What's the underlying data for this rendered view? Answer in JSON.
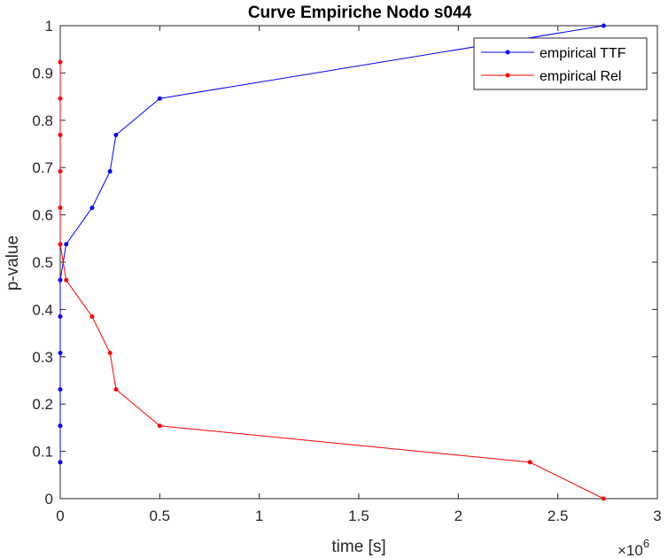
{
  "chart_data": {
    "type": "line",
    "title": "Curve Empiriche Nodo s044",
    "xlabel": "time [s]",
    "ylabel": "p-value",
    "xlim": [
      0,
      3
    ],
    "ylim": [
      0,
      1
    ],
    "x_multiplier": "×10",
    "x_multiplier_exp": "6",
    "xticks": [
      "0",
      "0.5",
      "1",
      "1.5",
      "2",
      "2.5",
      "3"
    ],
    "yticks": [
      "0",
      "0.1",
      "0.2",
      "0.3",
      "0.4",
      "0.5",
      "0.6",
      "0.7",
      "0.8",
      "0.9",
      "1"
    ],
    "grid": false,
    "legend_position": "top-right",
    "series": [
      {
        "name": "empirical TTF",
        "color": "#0000ff",
        "x": [
          0,
          0,
          0,
          0,
          0,
          0,
          0.03,
          0.16,
          0.25,
          0.28,
          0.5,
          2.73
        ],
        "y": [
          0.077,
          0.154,
          0.231,
          0.308,
          0.385,
          0.462,
          0.538,
          0.615,
          0.692,
          0.769,
          0.846,
          1.0
        ]
      },
      {
        "name": "empirical Rel",
        "color": "#ff0000",
        "x": [
          0,
          0,
          0,
          0,
          0,
          0,
          0.03,
          0.16,
          0.25,
          0.28,
          0.5,
          2.36,
          2.73
        ],
        "y": [
          0.923,
          0.846,
          0.769,
          0.692,
          0.615,
          0.538,
          0.462,
          0.385,
          0.308,
          0.231,
          0.154,
          0.077,
          0.0
        ]
      }
    ]
  }
}
